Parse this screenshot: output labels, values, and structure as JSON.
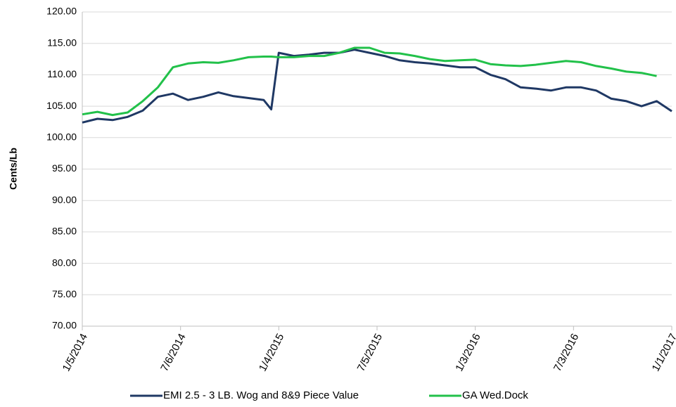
{
  "chart_data": {
    "type": "line",
    "y_label": "Cents/Lb",
    "x": [
      "1/5/2014",
      "2/2/2014",
      "3/2/2014",
      "3/30/2014",
      "4/27/2014",
      "5/25/2014",
      "6/22/2014",
      "7/20/2014",
      "8/17/2014",
      "9/14/2014",
      "10/12/2014",
      "11/9/2014",
      "12/7/2014",
      "12/21/2014",
      "1/4/2015",
      "2/1/2015",
      "3/1/2015",
      "3/29/2015",
      "4/26/2015",
      "5/24/2015",
      "6/21/2015",
      "7/19/2015",
      "8/16/2015",
      "9/13/2015",
      "10/11/2015",
      "11/8/2015",
      "12/6/2015",
      "1/3/2016",
      "1/31/2016",
      "2/28/2016",
      "3/27/2016",
      "4/24/2016",
      "5/22/2016",
      "6/19/2016",
      "7/17/2016",
      "8/14/2016",
      "9/11/2016",
      "10/9/2016",
      "11/6/2016",
      "12/4/2016",
      "1/1/2017"
    ],
    "series": [
      {
        "name": "EMI 2.5 - 3 LB. Wog and 8&9 Piece Value",
        "color": "#1f3864",
        "values": [
          102.4,
          103.0,
          102.8,
          103.3,
          104.3,
          106.5,
          107.0,
          106.0,
          106.5,
          107.2,
          106.6,
          106.3,
          106.0,
          104.5,
          113.5,
          113.0,
          113.2,
          113.5,
          113.5,
          114.0,
          113.5,
          113.0,
          112.3,
          112.0,
          111.8,
          111.5,
          111.2,
          111.2,
          110.0,
          109.3,
          108.0,
          107.8,
          107.5,
          108.0,
          108.0,
          107.5,
          106.2,
          105.8,
          105.0,
          105.8,
          104.2
        ]
      },
      {
        "name": "GA Wed.Dock",
        "color": "#22c14a",
        "values": [
          103.7,
          104.1,
          103.6,
          104.0,
          105.8,
          108.0,
          111.2,
          111.8,
          112.0,
          111.9,
          112.3,
          112.8,
          112.9,
          112.9,
          112.8,
          112.8,
          113.0,
          113.0,
          113.5,
          114.3,
          114.3,
          113.5,
          113.4,
          113.0,
          112.5,
          112.2,
          112.3,
          112.4,
          111.7,
          111.5,
          111.4,
          111.6,
          111.9,
          112.2,
          112.0,
          111.4,
          111.0,
          110.5,
          110.3,
          109.8,
          null
        ]
      }
    ],
    "xlim": [
      "1/5/2014",
      "1/1/2017"
    ],
    "xticks": [
      "1/5/2014",
      "7/6/2014",
      "1/4/2015",
      "7/5/2015",
      "1/3/2016",
      "7/3/2016",
      "1/1/2017"
    ],
    "ylim": [
      70,
      120
    ],
    "yticks": [
      {
        "value": 70,
        "label": "70.00"
      },
      {
        "value": 75,
        "label": "75.00"
      },
      {
        "value": 80,
        "label": "80.00"
      },
      {
        "value": 85,
        "label": "85.00"
      },
      {
        "value": 90,
        "label": "90.00"
      },
      {
        "value": 95,
        "label": "95.00"
      },
      {
        "value": 100,
        "label": "100.00"
      },
      {
        "value": 105,
        "label": "105.00"
      },
      {
        "value": 110,
        "label": "110.00"
      },
      {
        "value": 115,
        "label": "115.00"
      },
      {
        "value": 120,
        "label": "120.00"
      }
    ],
    "grid": true,
    "legend": "bottom"
  }
}
